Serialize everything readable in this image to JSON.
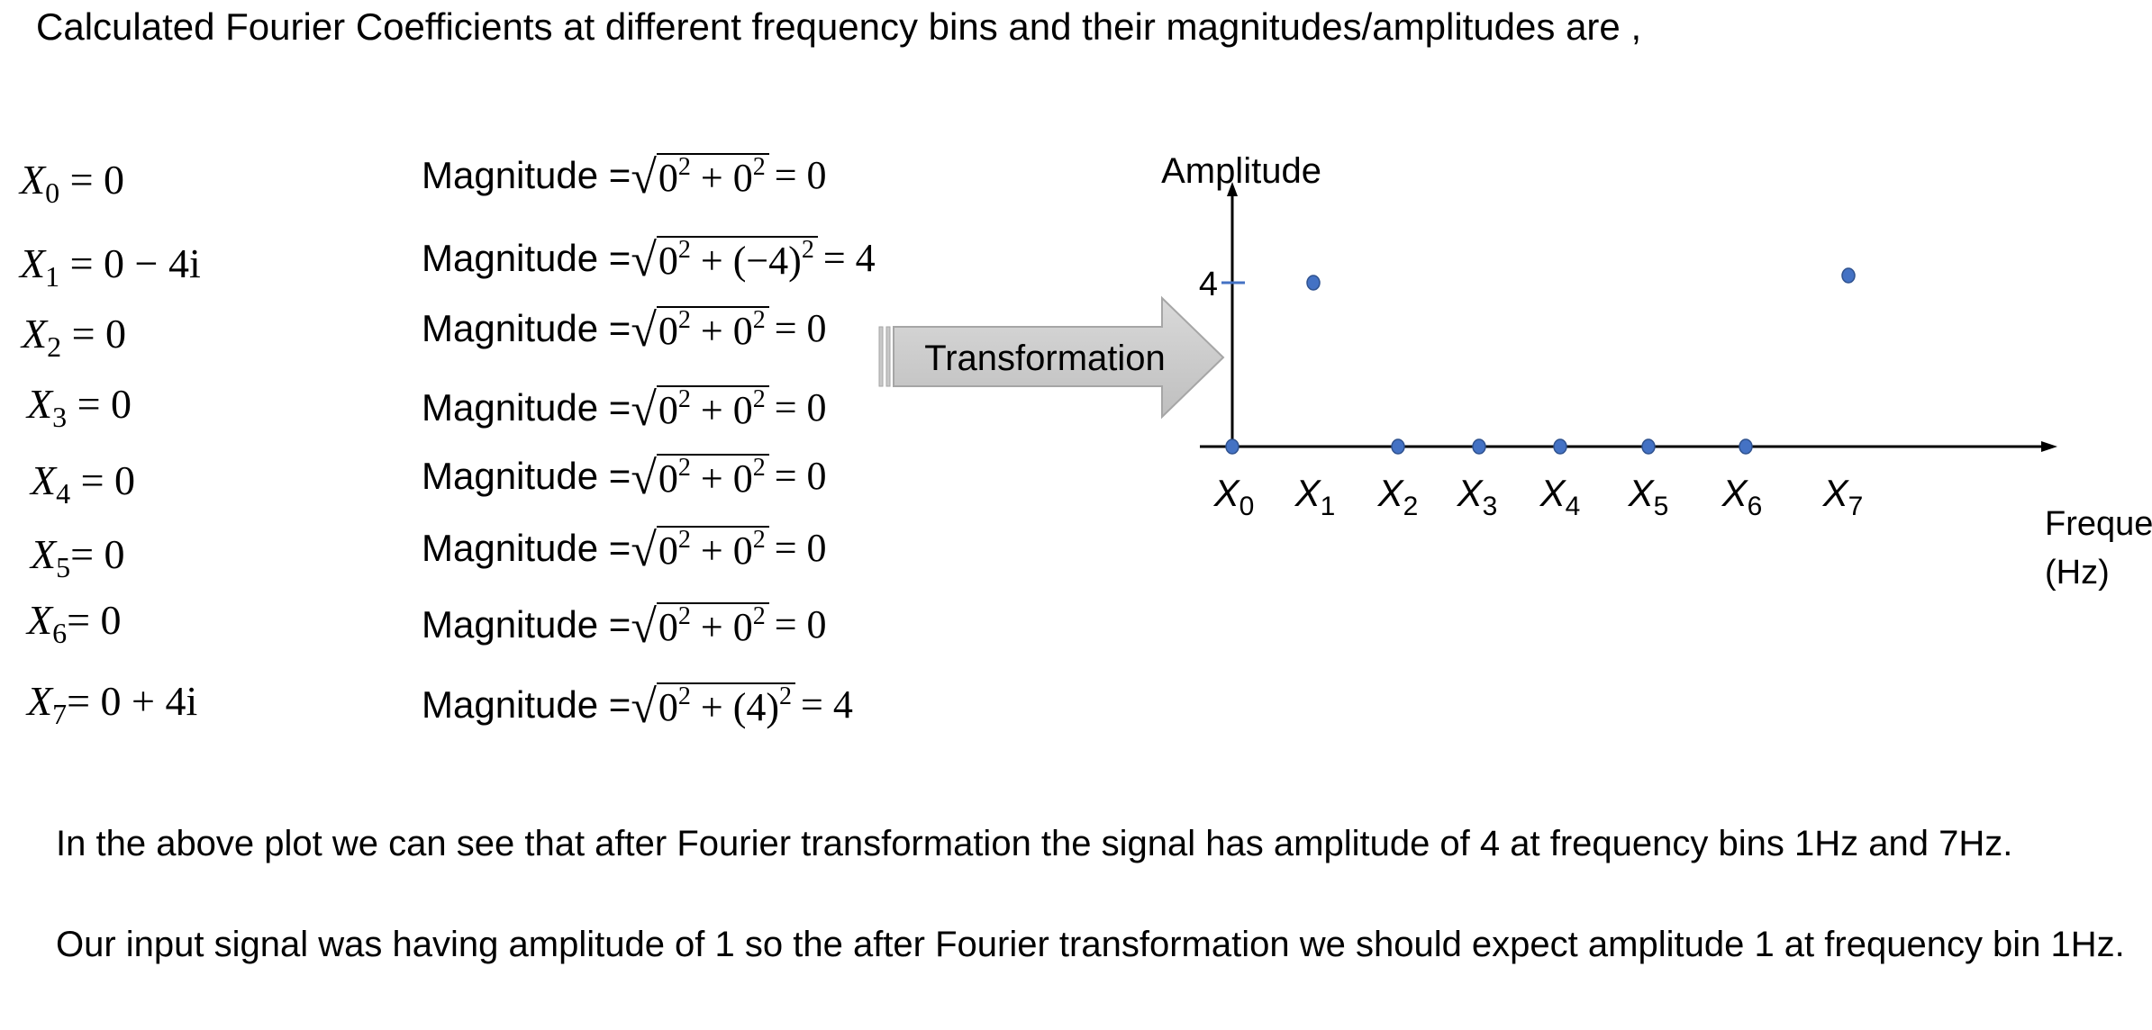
{
  "heading": "Calculated Fourier Coefficients at different frequency bins and their magnitudes/amplitudes are ,",
  "coefficients": [
    {
      "sym": "X",
      "sub": "0",
      "eq": " = 0"
    },
    {
      "sym": "X",
      "sub": "1",
      "eq": " = 0 − 4i"
    },
    {
      "sym": "X",
      "sub": "2",
      "eq": " = 0"
    },
    {
      "sym": "X",
      "sub": "3",
      "eq": " = 0"
    },
    {
      "sym": "X",
      "sub": "4",
      "eq": " = 0"
    },
    {
      "sym": "X",
      "sub": "5",
      "eq": "= 0"
    },
    {
      "sym": "X",
      "sub": "6",
      "eq": "= 0"
    },
    {
      "sym": "X",
      "sub": "7",
      "eq": "= 0 + 4i"
    }
  ],
  "magnitudes": [
    {
      "label": "Magnitude =",
      "radicand_a": "0",
      "radicand_b": "0",
      "result": "= 0"
    },
    {
      "label": "Magnitude =",
      "radicand_a": "0",
      "radicand_b": "(−4)",
      "result": "= 4"
    },
    {
      "label": "Magnitude =",
      "radicand_a": "0",
      "radicand_b": "0",
      "result": "= 0"
    },
    {
      "label": "Magnitude =",
      "radicand_a": "0",
      "radicand_b": "0",
      "result": "= 0"
    },
    {
      "label": "Magnitude =",
      "radicand_a": "0",
      "radicand_b": "0",
      "result": "= 0"
    },
    {
      "label": "Magnitude =",
      "radicand_a": "0",
      "radicand_b": "0",
      "result": "= 0"
    },
    {
      "label": "Magnitude =",
      "radicand_a": "0",
      "radicand_b": "0",
      "result": "= 0"
    },
    {
      "label": "Magnitude =",
      "radicand_a": "0",
      "radicand_b": "(4)",
      "result": "= 4"
    }
  ],
  "superscript": "2",
  "plus": " + ",
  "arrow_label": "Transformation",
  "chart_data": {
    "type": "scatter",
    "ylabel": "Amplitude",
    "xlabel": "Frequency (Hz)",
    "xlabel_lines": [
      "Frequency",
      "(Hz)"
    ],
    "y_tick": "4",
    "categories": [
      "X0",
      "X1",
      "X2",
      "X3",
      "X4",
      "X5",
      "X6",
      "X7"
    ],
    "category_subs": [
      "0",
      "1",
      "2",
      "3",
      "4",
      "5",
      "6",
      "7"
    ],
    "values": [
      0,
      4,
      0,
      0,
      0,
      0,
      0,
      4
    ],
    "ylim": [
      0,
      4
    ],
    "point_color": "#4472c4",
    "tick_color": "#4472c4"
  },
  "paragraphs": [
    "In the above plot we can see that after Fourier transformation the signal has amplitude of 4 at frequency bins 1Hz and 7Hz.",
    "Our input signal was having amplitude of 1 so the after Fourier transformation we should expect amplitude 1 at frequency bin 1Hz."
  ]
}
